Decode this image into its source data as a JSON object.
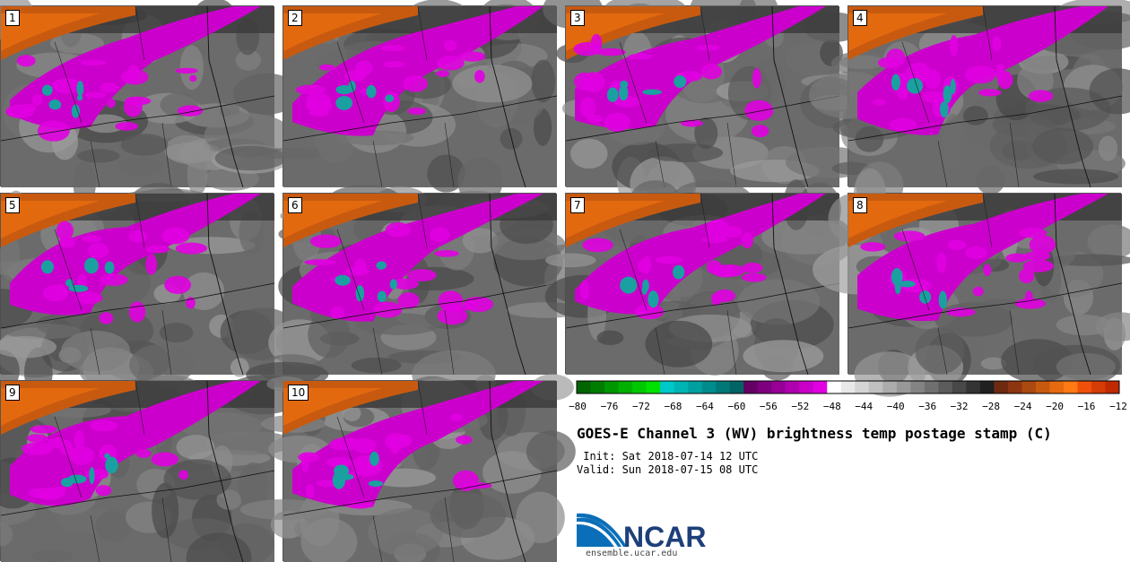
{
  "panels": [
    {
      "label": "1"
    },
    {
      "label": "2"
    },
    {
      "label": "3"
    },
    {
      "label": "4"
    },
    {
      "label": "5"
    },
    {
      "label": "6"
    },
    {
      "label": "7"
    },
    {
      "label": "8"
    },
    {
      "label": "9"
    },
    {
      "label": "10"
    }
  ],
  "colorbar": {
    "colors": [
      "#006400",
      "#007d00",
      "#009600",
      "#00af00",
      "#00c800",
      "#00e100",
      "#00c8c8",
      "#00b4b4",
      "#00a0a0",
      "#008c8c",
      "#007878",
      "#006464",
      "#640064",
      "#7d007d",
      "#960096",
      "#af00af",
      "#c800c8",
      "#e100e1",
      "#ffffff",
      "#e8e8e8",
      "#d4d4d4",
      "#c0c0c0",
      "#acacac",
      "#989898",
      "#848484",
      "#707070",
      "#5c5c5c",
      "#484848",
      "#343434",
      "#202020",
      "#6e2a10",
      "#8c3510",
      "#aa4a10",
      "#c85a10",
      "#e66a10",
      "#ff7a14",
      "#f0500a",
      "#d63c05",
      "#c02a00"
    ],
    "ticks": [
      "−80",
      "−76",
      "−72",
      "−68",
      "−64",
      "−60",
      "−56",
      "−52",
      "−48",
      "−44",
      "−40",
      "−36",
      "−32",
      "−28",
      "−24",
      "−20",
      "−16",
      "−12"
    ]
  },
  "title": "GOES-E Channel 3 (WV) brightness temp postage stamp (C)",
  "init_text": " Init: Sat 2018-07-14 12 UTC",
  "valid_text": "Valid: Sun 2018-07-15 08 UTC",
  "logo": {
    "text": "NCAR",
    "url": "ensemble.ucar.edu"
  }
}
